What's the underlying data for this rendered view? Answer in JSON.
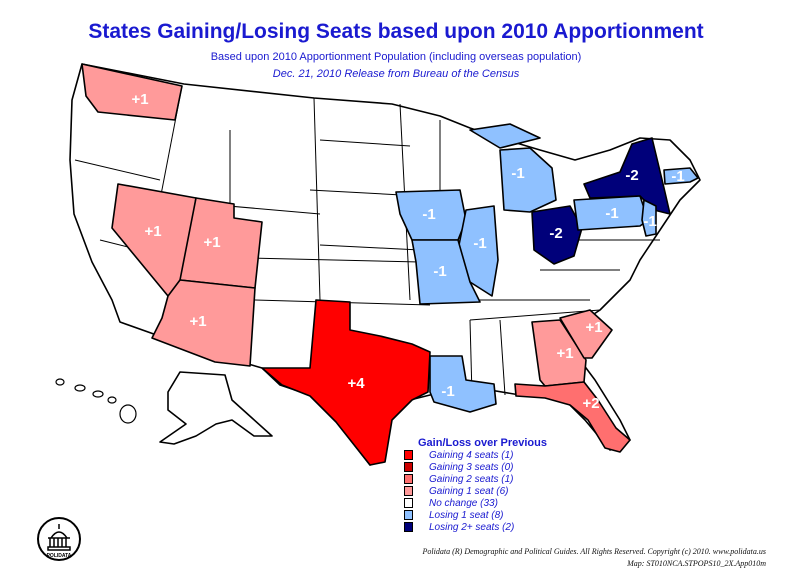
{
  "title": "States Gaining/Losing Seats based upon 2010 Apportionment",
  "subtitle": "Based upon 2010 Apportionment Population (including overseas population)",
  "release": "Dec. 21, 2010 Release from Bureau of the Census",
  "colors": {
    "gain4": "#ff0000",
    "gain3": "#cc0000",
    "gain2": "#ff6f6f",
    "gain1": "#ff9a9a",
    "none": "#ffffff",
    "lose1": "#8fc1ff",
    "lose2": "#00007a"
  },
  "states": {
    "WA": {
      "change": "+1"
    },
    "NV": {
      "change": "+1"
    },
    "UT": {
      "change": "+1"
    },
    "AZ": {
      "change": "+1"
    },
    "TX": {
      "change": "+4"
    },
    "GA": {
      "change": "+1"
    },
    "SC": {
      "change": "+1"
    },
    "FL": {
      "change": "+2"
    },
    "IA": {
      "change": "-1"
    },
    "IL": {
      "change": "-1"
    },
    "MO": {
      "change": "-1"
    },
    "MI": {
      "change": "-1"
    },
    "OH": {
      "change": "-2"
    },
    "NY": {
      "change": "-2"
    },
    "PA": {
      "change": "-1"
    },
    "MA": {
      "change": "-1"
    },
    "NJ": {
      "change": "-1"
    },
    "LA": {
      "change": "-1"
    }
  },
  "legend": {
    "title": "Gain/Loss over Previous",
    "items": [
      {
        "label": "Gaining 4 seats (1)",
        "color": "#ff0000"
      },
      {
        "label": "Gaining 3 seats (0)",
        "color": "#cc0000"
      },
      {
        "label": "Gaining 2 seats (1)",
        "color": "#ff6f6f"
      },
      {
        "label": "Gaining 1 seat (6)",
        "color": "#ff9a9a"
      },
      {
        "label": "No change (33)",
        "color": "#ffffff"
      },
      {
        "label": "Losing 1 seat (8)",
        "color": "#8fc1ff"
      },
      {
        "label": "Losing 2+ seats (2)",
        "color": "#00007a"
      }
    ]
  },
  "credit": "Polidata (R) Demographic and Political Guides. All Rights Reserved. Copyright (c) 2010. www.polidata.us",
  "map_id": "Map: ST010NCA.STPOPS10_2X.App010m",
  "logo_text": "POLIDATA"
}
